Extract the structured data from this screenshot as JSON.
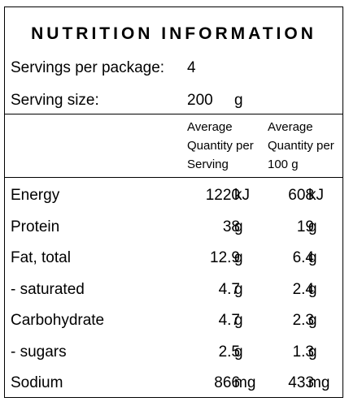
{
  "title": "NUTRITION INFORMATION",
  "servings": {
    "label": "Servings per package:",
    "value": "4"
  },
  "serving_size": {
    "label": "Serving size:",
    "value": "200",
    "unit": "g"
  },
  "columns": {
    "per_serving": [
      "Average",
      "Quantity per",
      "Serving"
    ],
    "per_100g": [
      "Average",
      "Quantity per",
      "100 g"
    ]
  },
  "nutrients": [
    {
      "name": "Energy",
      "per_serving": "1220",
      "per_serving_unit": "kJ",
      "per_100g": "608",
      "per_100g_unit": "kJ"
    },
    {
      "name": "Protein",
      "per_serving": "38",
      "per_serving_unit": "g",
      "per_100g": "19",
      "per_100g_unit": "g"
    },
    {
      "name": "Fat, total",
      "per_serving": "12.9",
      "per_serving_unit": "g",
      "per_100g": "6.4",
      "per_100g_unit": "g"
    },
    {
      "name": "- saturated",
      "per_serving": "4.7",
      "per_serving_unit": "g",
      "per_100g": "2.4",
      "per_100g_unit": "g"
    },
    {
      "name": "Carbohydrate",
      "per_serving": "4.7",
      "per_serving_unit": "g",
      "per_100g": "2.3",
      "per_100g_unit": "g"
    },
    {
      "name": "- sugars",
      "per_serving": "2.5",
      "per_serving_unit": "g",
      "per_100g": "1.3",
      "per_100g_unit": "g"
    },
    {
      "name": "Sodium",
      "per_serving": "866",
      "per_serving_unit": "mg",
      "per_100g": "433",
      "per_100g_unit": "mg"
    }
  ]
}
